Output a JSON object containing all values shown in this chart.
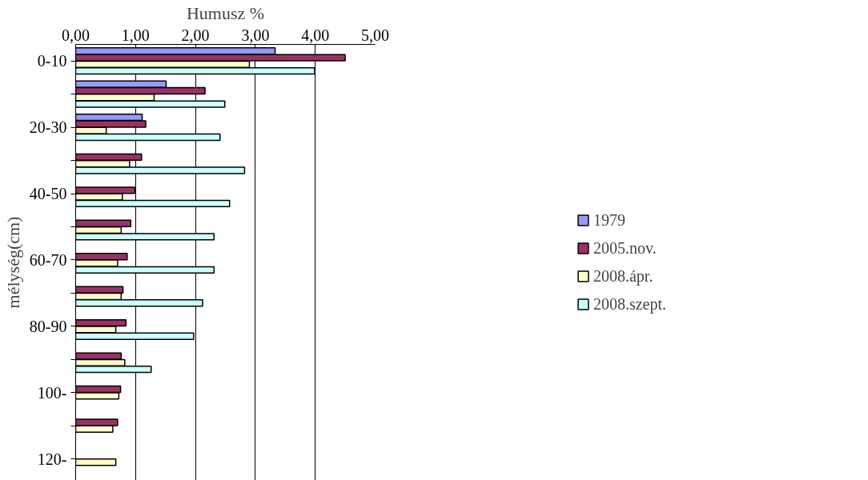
{
  "chart_data": {
    "type": "bar",
    "orientation": "horizontal",
    "xlabel": "Humusz %",
    "ylabel": "mélység(cm)",
    "categories": [
      "0-10",
      null,
      "20-30",
      null,
      "40-50",
      null,
      "60-70",
      null,
      "80-90",
      null,
      "100-",
      null,
      "120-"
    ],
    "series": [
      {
        "name": "1979",
        "color": "#9999ff",
        "values": [
          3.33,
          1.51,
          1.11,
          null,
          null,
          null,
          null,
          null,
          null,
          null,
          null,
          null,
          null
        ]
      },
      {
        "name": "2005.nov.",
        "color": "#993366",
        "values": [
          4.5,
          2.16,
          1.17,
          1.1,
          0.99,
          0.92,
          0.86,
          0.79,
          0.84,
          0.76,
          0.75,
          0.7,
          null
        ]
      },
      {
        "name": "2008.ápr.",
        "color": "#ffffcc",
        "values": [
          2.9,
          1.31,
          0.51,
          0.9,
          0.78,
          0.76,
          0.7,
          0.76,
          0.67,
          0.82,
          0.72,
          0.62,
          0.67
        ]
      },
      {
        "name": "2008.szept.",
        "color": "#ccffff",
        "values": [
          3.99,
          2.49,
          2.41,
          2.82,
          2.57,
          2.31,
          2.31,
          2.12,
          1.97,
          1.26,
          null,
          null,
          null
        ]
      }
    ],
    "xlim": [
      0,
      5
    ],
    "xticks": [
      {
        "value": 0,
        "label": "0,00"
      },
      {
        "value": 1,
        "label": "1,00"
      },
      {
        "value": 2,
        "label": "2,00"
      },
      {
        "value": 3,
        "label": "3,00"
      },
      {
        "value": 4,
        "label": "4,00"
      },
      {
        "value": 5,
        "label": "5,00"
      }
    ],
    "grid": "x",
    "legend": "right"
  }
}
